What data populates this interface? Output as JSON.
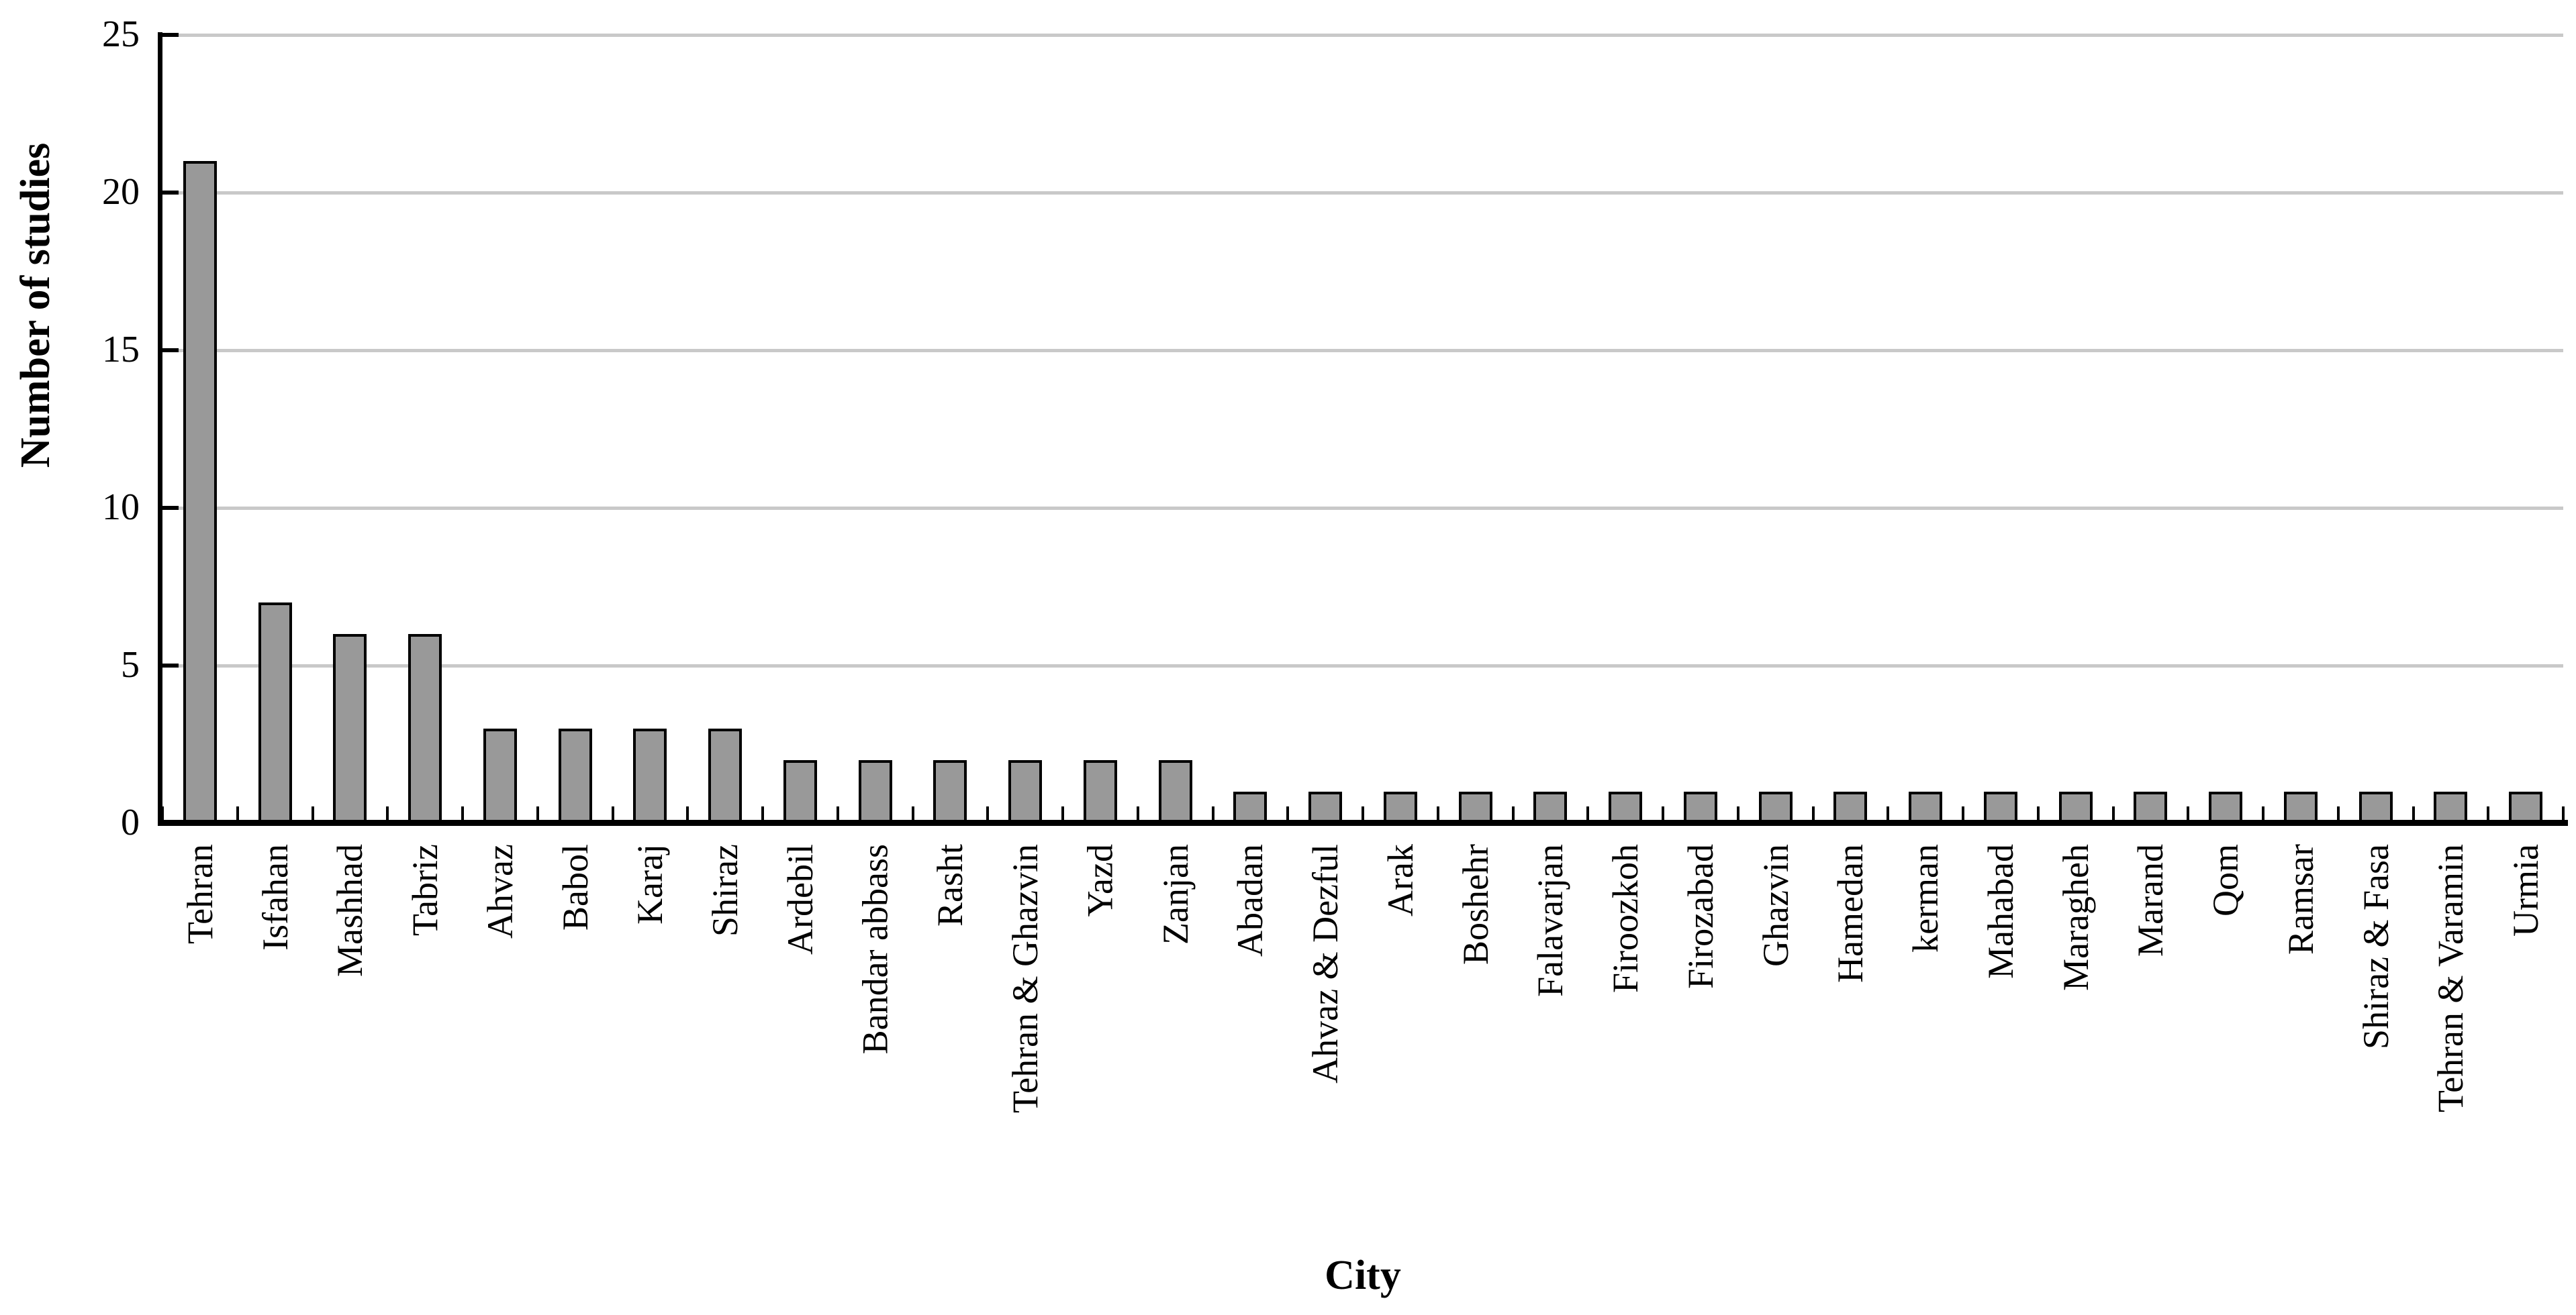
{
  "chart_data": {
    "type": "bar",
    "title": "",
    "xlabel": "City",
    "ylabel": "Number of studies",
    "categories": [
      "Tehran",
      "Isfahan",
      "Mashhad",
      "Tabriz",
      "Ahvaz",
      "Babol",
      "Karaj",
      "Shiraz",
      "Ardebil",
      "Bandar abbass",
      "Rasht",
      "Tehran & Ghazvin",
      "Yazd",
      "Zanjan",
      "Abadan",
      "Ahvaz & Dezful",
      "Arak",
      "Boshehr",
      "Falavarjan",
      "Firoozkoh",
      "Firozabad",
      "Ghazvin",
      "Hamedan",
      "kerman",
      "Mahabad",
      "Maragheh",
      "Marand",
      "Qom",
      "Ramsar",
      "Shiraz & Fasa",
      "Tehran & Varamin",
      "Urmia"
    ],
    "values": [
      21,
      7,
      6,
      6,
      3,
      3,
      3,
      3,
      2,
      2,
      2,
      2,
      2,
      2,
      1,
      1,
      1,
      1,
      1,
      1,
      1,
      1,
      1,
      1,
      1,
      1,
      1,
      1,
      1,
      1,
      1,
      1
    ],
    "ylim": [
      0,
      25
    ],
    "yticks": [
      0,
      5,
      10,
      15,
      20,
      25
    ],
    "grid": "horizontal",
    "legend_position": "none",
    "bar_fill_color": "#999999",
    "bar_border_color": "#000000",
    "gridline_color": "#C9C9C9"
  }
}
